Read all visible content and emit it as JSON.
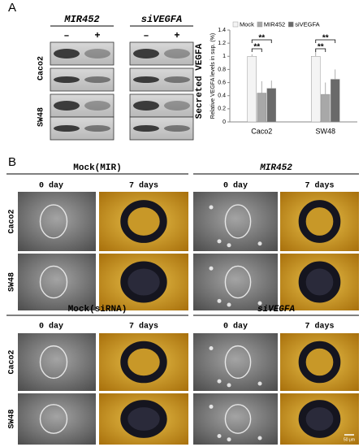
{
  "panel_a": {
    "label": "A",
    "blot": {
      "columns": [
        "MIR452",
        "siVEGFA"
      ],
      "signs": [
        "–",
        "+",
        "–",
        "+"
      ],
      "rows": [
        "Caco2",
        "SW48"
      ],
      "side_label": "Secreted VEGFA"
    }
  },
  "chart_data": {
    "type": "bar",
    "y_label": "Relative VEGFA levels in sup. (%)",
    "categories": [
      "Caco2",
      "SW48"
    ],
    "series": [
      {
        "name": "Mock",
        "color": "#f4f4f4",
        "values": [
          1.0,
          1.0
        ],
        "errors": [
          0.03,
          0.1
        ]
      },
      {
        "name": "MIR452",
        "color": "#a8a8a8",
        "values": [
          0.44,
          0.42
        ],
        "errors": [
          0.18,
          0.18
        ]
      },
      {
        "name": "siVEGFA",
        "color": "#6a6a6a",
        "values": [
          0.51,
          0.65
        ],
        "errors": [
          0.12,
          0.15
        ]
      }
    ],
    "ylim": [
      0,
      1.4
    ],
    "yticks": [
      0,
      0.2,
      0.4,
      0.6,
      0.8,
      1,
      1.2,
      1.4
    ],
    "annotations": [
      "**",
      "**",
      "**",
      "**"
    ],
    "legend": "top"
  },
  "panel_b": {
    "label": "B",
    "blocks": [
      {
        "rows": [
          "Caco2",
          "SW48"
        ],
        "groups": [
          {
            "title": "Mock(MIR)",
            "days": [
              "0 day",
              "7 days"
            ]
          },
          {
            "title": "MIR452",
            "days": [
              "0 day",
              "7 days"
            ]
          }
        ]
      },
      {
        "rows": [
          "Caco2",
          "SW48"
        ],
        "groups": [
          {
            "title": "Mock(siRNA)",
            "days": [
              "0 day",
              "7 days"
            ]
          },
          {
            "title": "siVEGFA",
            "days": [
              "0 day",
              "7 days"
            ]
          }
        ]
      }
    ],
    "scale_bar": "50 μm"
  }
}
